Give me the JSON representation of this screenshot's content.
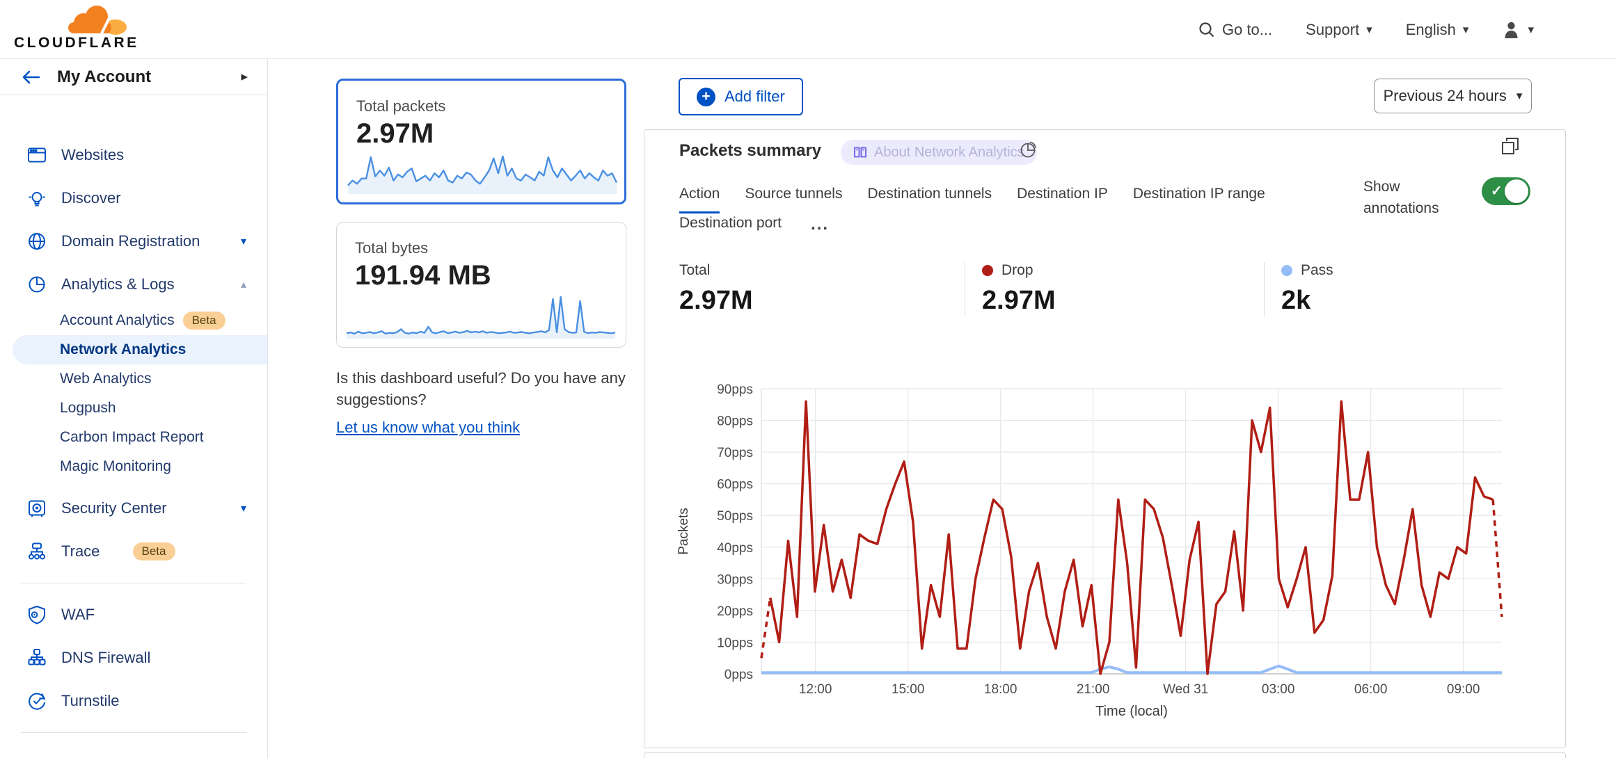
{
  "accents": {
    "blue": "#0051c3",
    "navy": "#003681",
    "drop_red": "#b01e15",
    "pass_blue": "#94bdf8",
    "toggle_green": "#2d8f46",
    "badge_orange_bg": "#f9cf96",
    "spark_blue": "#4a90e2",
    "selected_card_border": "#2b6cd9"
  },
  "topbar": {
    "brand": "CLOUDFLARE",
    "goto": "Go to...",
    "support": "Support",
    "language": "English"
  },
  "sidebar": {
    "account_label": "My Account",
    "items": [
      {
        "label": "Websites"
      },
      {
        "label": "Discover"
      },
      {
        "label": "Domain Registration"
      },
      {
        "label": "Analytics & Logs"
      },
      {
        "label": "Account Analytics",
        "badge": "Beta"
      },
      {
        "label": "Network Analytics"
      },
      {
        "label": "Web Analytics"
      },
      {
        "label": "Logpush"
      },
      {
        "label": "Carbon Impact Report"
      },
      {
        "label": "Magic Monitoring"
      },
      {
        "label": "Security Center"
      },
      {
        "label": "Trace",
        "badge": "Beta"
      },
      {
        "label": "WAF"
      },
      {
        "label": "DNS Firewall"
      },
      {
        "label": "Turnstile"
      }
    ]
  },
  "summary_cards": {
    "packets": {
      "label": "Total packets",
      "value": "2.97M",
      "spark": [
        18,
        30,
        22,
        35,
        35,
        88,
        40,
        55,
        42,
        62,
        30,
        45,
        38,
        52,
        60,
        28,
        35,
        42,
        30,
        48,
        38,
        55,
        30,
        25,
        42,
        35,
        50,
        45,
        30,
        22,
        38,
        55,
        85,
        48,
        90,
        42,
        60,
        35,
        30,
        45,
        38,
        30,
        52,
        42,
        88,
        55,
        38,
        60,
        45,
        30,
        42,
        55,
        35,
        48,
        38,
        30,
        55,
        42,
        48,
        25
      ]
    },
    "bytes": {
      "label": "Total bytes",
      "value": "191.94 MB",
      "spark": [
        10,
        12,
        9,
        14,
        10,
        11,
        13,
        10,
        12,
        15,
        9,
        11,
        10,
        13,
        20,
        11,
        9,
        12,
        10,
        14,
        11,
        26,
        12,
        10,
        13,
        15,
        10,
        12,
        14,
        11,
        13,
        16,
        12,
        14,
        12,
        15,
        11,
        13,
        12,
        10,
        11,
        12,
        14,
        11,
        12,
        13,
        11,
        10,
        12,
        13,
        15,
        12,
        18,
        95,
        12,
        100,
        20,
        13,
        11,
        12,
        90,
        14,
        10,
        12,
        11,
        13,
        12,
        11,
        10,
        12
      ]
    }
  },
  "feedback": {
    "question": "Is this dashboard useful? Do you have any suggestions?",
    "link": "Let us know what you think"
  },
  "filters": {
    "add_filter": "Add filter",
    "time_range": "Previous 24 hours"
  },
  "panel": {
    "title": "Packets summary",
    "badge": "About Network Analytics",
    "tabs": [
      "Action",
      "Source tunnels",
      "Destination tunnels",
      "Destination IP",
      "Destination IP range",
      "Destination port"
    ],
    "active_tab": "Action",
    "more_label": "...",
    "show_annotations": "Show annotations",
    "stats": [
      {
        "label": "Total",
        "value": "2.97M",
        "dot": null
      },
      {
        "label": "Drop",
        "value": "2.97M",
        "dot": "#b01e15"
      },
      {
        "label": "Pass",
        "value": "2k",
        "dot": "#94bdf8"
      }
    ]
  },
  "chart_data": {
    "type": "line",
    "title": "Packets summary",
    "xlabel": "Time (local)",
    "ylabel": "Packets",
    "ylim": [
      0,
      90
    ],
    "grid": true,
    "legend_position": "none",
    "y_ticks": [
      "0pps",
      "10pps",
      "20pps",
      "30pps",
      "40pps",
      "50pps",
      "60pps",
      "70pps",
      "80pps",
      "90pps"
    ],
    "x_ticks": [
      {
        "label": "12:00",
        "pos": 0.073
      },
      {
        "label": "15:00",
        "pos": 0.198
      },
      {
        "label": "18:00",
        "pos": 0.323
      },
      {
        "label": "21:00",
        "pos": 0.448
      },
      {
        "label": "Wed 31",
        "pos": 0.573
      },
      {
        "label": "03:00",
        "pos": 0.698
      },
      {
        "label": "06:00",
        "pos": 0.823
      },
      {
        "label": "09:00",
        "pos": 0.948
      }
    ],
    "series": [
      {
        "name": "Drop",
        "color": "#b01e15",
        "dashed_ends": true,
        "values": [
          5,
          24,
          10,
          42,
          18,
          86,
          26,
          47,
          26,
          36,
          24,
          44,
          42,
          41,
          52,
          60,
          67,
          48,
          8,
          28,
          18,
          44,
          8,
          8,
          30,
          43,
          55,
          52,
          37,
          8,
          26,
          35,
          18,
          8,
          26,
          36,
          15,
          28,
          0,
          10,
          55,
          35,
          2,
          55,
          52,
          43,
          28,
          12,
          36,
          48,
          0,
          22,
          26,
          45,
          20,
          80,
          70,
          84,
          30,
          21,
          30,
          40,
          13,
          17,
          31,
          86,
          55,
          55,
          70,
          40,
          28,
          22,
          36,
          52,
          28,
          18,
          32,
          30,
          40,
          38,
          62,
          56,
          55,
          18
        ]
      },
      {
        "name": "Pass",
        "color": "#94bdf8",
        "dashed_ends": false,
        "values": [
          0.4,
          0.4,
          0.4,
          0.4,
          0.4,
          0.4,
          0.4,
          0.4,
          0.4,
          0.4,
          0.4,
          0.4,
          0.4,
          0.4,
          0.4,
          0.4,
          0.4,
          0.4,
          0.4,
          0.4,
          0.4,
          0.4,
          0.4,
          0.4,
          0.4,
          0.4,
          0.4,
          0.4,
          0.4,
          0.4,
          0.4,
          0.4,
          0.4,
          0.4,
          0.4,
          0.4,
          0.4,
          0.4,
          1.5,
          2.2,
          1.5,
          0.4,
          0.4,
          0.4,
          0.4,
          0.4,
          0.4,
          0.4,
          0.4,
          0.4,
          0.4,
          0.4,
          0.4,
          0.4,
          0.4,
          0.4,
          0.4,
          1.5,
          2.5,
          1.5,
          0.4,
          0.4,
          0.4,
          0.4,
          0.4,
          0.4,
          0.4,
          0.4,
          0.4,
          0.4,
          0.4,
          0.4,
          0.4,
          0.4,
          0.4,
          0.4,
          0.4,
          0.4,
          0.4,
          0.4,
          0.4,
          0.4,
          0.4,
          0.4
        ]
      }
    ]
  }
}
